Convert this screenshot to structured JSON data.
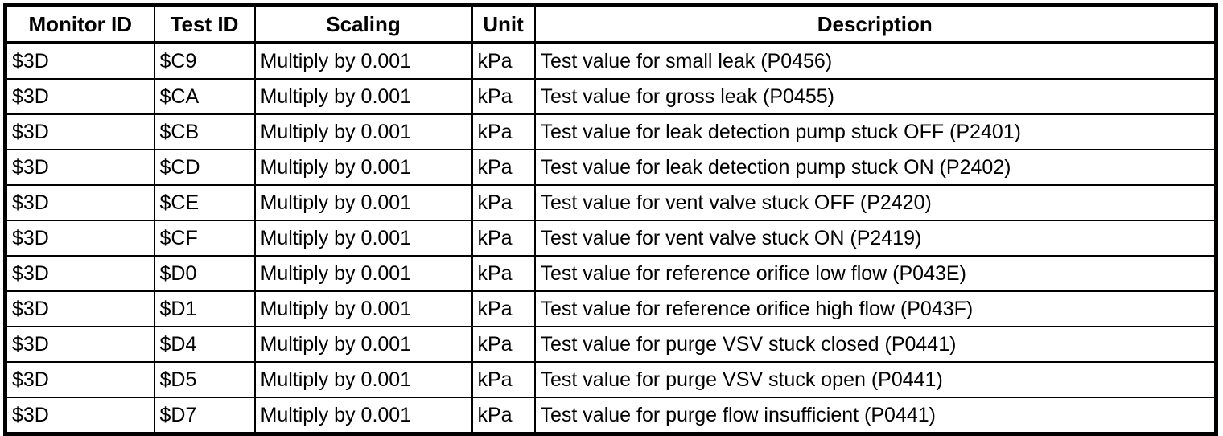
{
  "table": {
    "columns": [
      {
        "key": "monitor_id",
        "label": "Monitor ID"
      },
      {
        "key": "test_id",
        "label": "Test ID"
      },
      {
        "key": "scaling",
        "label": "Scaling"
      },
      {
        "key": "unit",
        "label": "Unit"
      },
      {
        "key": "description",
        "label": "Description"
      }
    ],
    "rows": [
      {
        "monitor_id": "$3D",
        "test_id": "$C9",
        "scaling": "Multiply by 0.001",
        "unit": "kPa",
        "description": "Test value for small leak (P0456)"
      },
      {
        "monitor_id": "$3D",
        "test_id": "$CA",
        "scaling": "Multiply by 0.001",
        "unit": "kPa",
        "description": "Test value for gross leak (P0455)"
      },
      {
        "monitor_id": "$3D",
        "test_id": "$CB",
        "scaling": "Multiply by 0.001",
        "unit": "kPa",
        "description": "Test value for leak detection pump stuck OFF (P2401)"
      },
      {
        "monitor_id": "$3D",
        "test_id": "$CD",
        "scaling": "Multiply by 0.001",
        "unit": "kPa",
        "description": "Test value for leak detection pump stuck ON (P2402)"
      },
      {
        "monitor_id": "$3D",
        "test_id": "$CE",
        "scaling": "Multiply by 0.001",
        "unit": "kPa",
        "description": "Test value for vent valve stuck OFF (P2420)"
      },
      {
        "monitor_id": "$3D",
        "test_id": "$CF",
        "scaling": "Multiply by 0.001",
        "unit": "kPa",
        "description": "Test value for vent valve stuck ON (P2419)"
      },
      {
        "monitor_id": "$3D",
        "test_id": "$D0",
        "scaling": "Multiply by 0.001",
        "unit": "kPa",
        "description": "Test value for reference orifice low flow (P043E)"
      },
      {
        "monitor_id": "$3D",
        "test_id": "$D1",
        "scaling": "Multiply by 0.001",
        "unit": "kPa",
        "description": "Test value for reference orifice high flow (P043F)"
      },
      {
        "monitor_id": "$3D",
        "test_id": "$D4",
        "scaling": "Multiply by 0.001",
        "unit": "kPa",
        "description": "Test value for purge VSV stuck closed (P0441)"
      },
      {
        "monitor_id": "$3D",
        "test_id": "$D5",
        "scaling": "Multiply by 0.001",
        "unit": "kPa",
        "description": "Test value for purge VSV stuck open (P0441)"
      },
      {
        "monitor_id": "$3D",
        "test_id": "$D7",
        "scaling": "Multiply by 0.001",
        "unit": "kPa",
        "description": "Test value for purge flow insufficient (P0441)"
      }
    ],
    "colors": {
      "border": "#000000",
      "text": "#000000",
      "background": "#ffffff"
    }
  }
}
